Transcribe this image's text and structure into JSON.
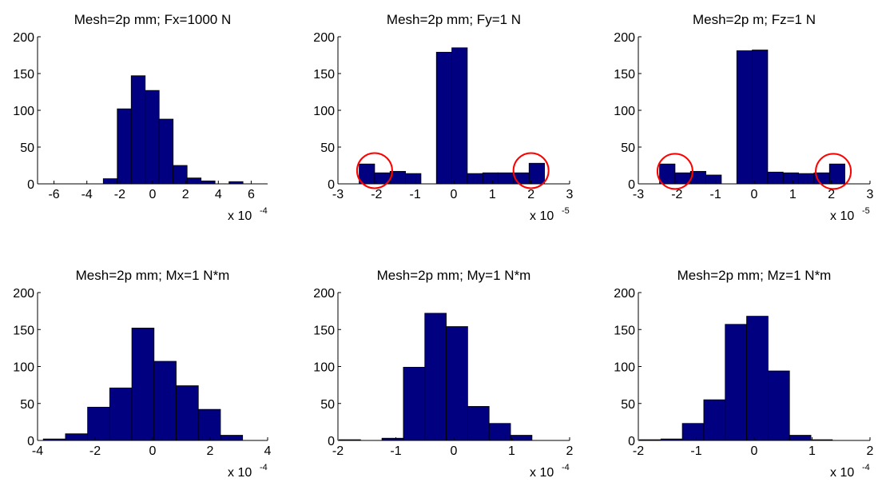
{
  "colors": {
    "bar_fill": "#000080",
    "bar_edge": "#000000",
    "axis": "#000000",
    "marker": "#ff0000",
    "background": "#ffffff"
  },
  "chart_data": [
    {
      "type": "bar",
      "title": "Mesh=2p mm; Fx=1000 N",
      "xlim": [
        -7,
        7
      ],
      "ylim": [
        0,
        200
      ],
      "xticks": [
        -6,
        -4,
        -2,
        0,
        2,
        4,
        6
      ],
      "xtick_labels": [
        "-6",
        "-4",
        "-2",
        "0",
        "2",
        "4",
        "6"
      ],
      "yticks": [
        0,
        50,
        100,
        150,
        200
      ],
      "ytick_labels": [
        "0",
        "50",
        "100",
        "150",
        "200"
      ],
      "x_scale_text": "x 10",
      "x_scale_exponent": "-4",
      "bin_edges": [
        -6.4,
        -5.55,
        -4.7,
        -3.85,
        -3.0,
        -2.15,
        -1.3,
        -0.45,
        0.4,
        1.25,
        2.1,
        2.95,
        3.8,
        4.65,
        5.5,
        6.35
      ],
      "values": [
        0,
        0,
        0,
        0,
        7,
        102,
        147,
        127,
        88,
        25,
        8,
        4,
        0,
        3,
        0
      ],
      "markers": []
    },
    {
      "type": "bar",
      "title": "Mesh=2p mm; Fy=1 N",
      "xlim": [
        -3,
        3
      ],
      "ylim": [
        0,
        200
      ],
      "xticks": [
        -3,
        -2,
        -1,
        0,
        1,
        2,
        3
      ],
      "xtick_labels": [
        "-3",
        "-2",
        "-1",
        "0",
        "1",
        "2",
        "3"
      ],
      "yticks": [
        0,
        50,
        100,
        150,
        200
      ],
      "ytick_labels": [
        "0",
        "50",
        "100",
        "150",
        "200"
      ],
      "x_scale_text": "x 10",
      "x_scale_exponent": "-5",
      "bin_edges": [
        -2.45,
        -2.05,
        -1.65,
        -1.25,
        -0.85,
        -0.45,
        -0.05,
        0.35,
        0.75,
        1.15,
        1.55,
        1.95,
        2.35
      ],
      "values": [
        27,
        15,
        17,
        14,
        0,
        179,
        185,
        14,
        15,
        15,
        15,
        28
      ],
      "markers": [
        {
          "x": -2.05,
          "y": 18
        },
        {
          "x": 2.0,
          "y": 18
        }
      ]
    },
    {
      "type": "bar",
      "title": "Mesh=2p m; Fz=1 N",
      "xlim": [
        -3,
        3
      ],
      "ylim": [
        0,
        200
      ],
      "xticks": [
        -3,
        -2,
        -1,
        0,
        1,
        2,
        3
      ],
      "xtick_labels": [
        "-3",
        "-2",
        "-1",
        "0",
        "1",
        "2",
        "3"
      ],
      "yticks": [
        0,
        50,
        100,
        150,
        200
      ],
      "ytick_labels": [
        "0",
        "50",
        "100",
        "150",
        "200"
      ],
      "x_scale_text": "x 10",
      "x_scale_exponent": "-5",
      "bin_edges": [
        -2.45,
        -2.05,
        -1.65,
        -1.25,
        -0.85,
        -0.45,
        -0.05,
        0.35,
        0.75,
        1.15,
        1.55,
        1.95,
        2.35
      ],
      "values": [
        27,
        15,
        17,
        12,
        0,
        181,
        182,
        16,
        15,
        14,
        15,
        27
      ],
      "markers": [
        {
          "x": -2.05,
          "y": 17
        },
        {
          "x": 2.05,
          "y": 17
        }
      ]
    },
    {
      "type": "bar",
      "title": "Mesh=2p mm; Mx=1 N*m",
      "xlim": [
        -4,
        4
      ],
      "ylim": [
        0,
        200
      ],
      "xticks": [
        -4,
        -2,
        0,
        2,
        4
      ],
      "xtick_labels": [
        "-4",
        "-2",
        "0",
        "2",
        "4"
      ],
      "yticks": [
        0,
        50,
        100,
        150,
        200
      ],
      "ytick_labels": [
        "0",
        "50",
        "100",
        "150",
        "200"
      ],
      "x_scale_text": "x 10",
      "x_scale_exponent": "-4",
      "bin_edges": [
        -3.8,
        -3.03,
        -2.26,
        -1.49,
        -0.72,
        0.05,
        0.82,
        1.59,
        2.36,
        3.13,
        3.9
      ],
      "values": [
        2,
        9,
        45,
        71,
        152,
        107,
        74,
        42,
        7,
        0
      ],
      "markers": []
    },
    {
      "type": "bar",
      "title": "Mesh=2p mm; My=1 N*m",
      "xlim": [
        -2,
        2
      ],
      "ylim": [
        0,
        200
      ],
      "xticks": [
        -2,
        -1,
        0,
        1,
        2
      ],
      "xtick_labels": [
        "-2",
        "-1",
        "0",
        "1",
        "2"
      ],
      "yticks": [
        0,
        50,
        100,
        150,
        200
      ],
      "ytick_labels": [
        "0",
        "50",
        "100",
        "150",
        "200"
      ],
      "x_scale_text": "x 10",
      "x_scale_exponent": "-4",
      "bin_edges": [
        -1.98,
        -1.61,
        -1.24,
        -0.87,
        -0.5,
        -0.13,
        0.24,
        0.61,
        0.98,
        1.35,
        1.72
      ],
      "values": [
        1,
        0,
        3,
        99,
        172,
        154,
        46,
        23,
        7,
        0
      ],
      "markers": []
    },
    {
      "type": "bar",
      "title": "Mesh=2p mm; Mz=1 N*m",
      "xlim": [
        -2,
        2
      ],
      "ylim": [
        0,
        200
      ],
      "xticks": [
        -2,
        -1,
        0,
        1,
        2
      ],
      "xtick_labels": [
        "-2",
        "-1",
        "0",
        "1",
        "2"
      ],
      "yticks": [
        0,
        50,
        100,
        150,
        200
      ],
      "ytick_labels": [
        "0",
        "50",
        "100",
        "150",
        "200"
      ],
      "x_scale_text": "x 10",
      "x_scale_exponent": "-4",
      "bin_edges": [
        -1.98,
        -1.61,
        -1.24,
        -0.87,
        -0.5,
        -0.13,
        0.24,
        0.61,
        0.98,
        1.35,
        1.72
      ],
      "values": [
        1,
        2,
        23,
        55,
        157,
        168,
        94,
        7,
        1,
        0
      ],
      "markers": []
    }
  ]
}
